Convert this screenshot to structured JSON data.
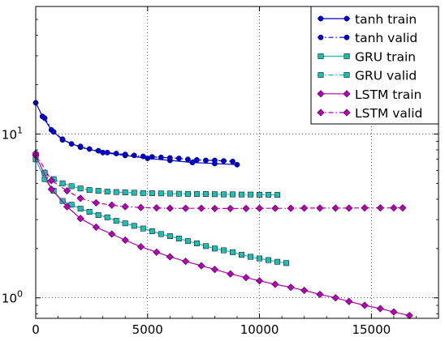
{
  "chart_data": {
    "type": "line",
    "title": "",
    "xlabel": "",
    "ylabel": "",
    "xlim": [
      0,
      18000
    ],
    "ylim": [
      0.75,
      60
    ],
    "yscale": "log",
    "grid": true,
    "legend_position": "top-right",
    "x_ticks": [
      {
        "value": 0,
        "label": "0"
      },
      {
        "value": 5000,
        "label": "5000"
      },
      {
        "value": 10000,
        "label": "10000"
      },
      {
        "value": 15000,
        "label": "15000"
      }
    ],
    "y_ticks": [
      {
        "value": 1,
        "base": "10",
        "exp": "0"
      },
      {
        "value": 10,
        "base": "10",
        "exp": "1"
      }
    ],
    "series": [
      {
        "name": "tanh train",
        "color": "#0000cc",
        "marker": "circle",
        "line": "solid",
        "marker_every": 0,
        "points": [
          [
            0,
            15.5
          ],
          [
            300,
            12.8
          ],
          [
            700,
            10.6
          ],
          [
            1200,
            9.2
          ],
          [
            2000,
            8.3
          ],
          [
            3000,
            7.7
          ],
          [
            4000,
            7.4
          ],
          [
            5000,
            7.1
          ],
          [
            6000,
            6.9
          ],
          [
            7000,
            6.7
          ],
          [
            8000,
            6.6
          ],
          [
            9000,
            6.5
          ]
        ]
      },
      {
        "name": "tanh valid",
        "color": "#0000cc",
        "marker": "circle",
        "line": "dashdot",
        "marker_every": 1,
        "points": [
          [
            400,
            12.5
          ],
          [
            800,
            10.3
          ],
          [
            1200,
            9.3
          ],
          [
            1600,
            8.7
          ],
          [
            2000,
            8.4
          ],
          [
            2400,
            8.1
          ],
          [
            2800,
            7.9
          ],
          [
            3200,
            7.7
          ],
          [
            3600,
            7.6
          ],
          [
            4000,
            7.5
          ],
          [
            4400,
            7.4
          ],
          [
            4800,
            7.3
          ],
          [
            5200,
            7.25
          ],
          [
            5600,
            7.2
          ],
          [
            6000,
            7.15
          ],
          [
            6400,
            7.1
          ],
          [
            6800,
            7.0
          ],
          [
            7200,
            6.95
          ],
          [
            7600,
            6.9
          ],
          [
            8000,
            6.9
          ],
          [
            8400,
            6.85
          ],
          [
            8800,
            6.8
          ]
        ]
      },
      {
        "name": "GRU train",
        "color": "#23bbb3",
        "marker": "square",
        "line": "solid",
        "marker_every": 1,
        "points": [
          [
            0,
            7.0
          ],
          [
            400,
            5.3
          ],
          [
            800,
            4.5
          ],
          [
            1200,
            3.9
          ],
          [
            1600,
            3.7
          ],
          [
            2000,
            3.5
          ],
          [
            2400,
            3.35
          ],
          [
            2800,
            3.2
          ],
          [
            3200,
            3.1
          ],
          [
            3600,
            2.95
          ],
          [
            4000,
            2.85
          ],
          [
            4400,
            2.75
          ],
          [
            4800,
            2.65
          ],
          [
            5200,
            2.55
          ],
          [
            5600,
            2.45
          ],
          [
            6000,
            2.38
          ],
          [
            6400,
            2.3
          ],
          [
            6800,
            2.22
          ],
          [
            7200,
            2.15
          ],
          [
            7600,
            2.07
          ],
          [
            8000,
            2.0
          ],
          [
            8400,
            1.95
          ],
          [
            8800,
            1.9
          ],
          [
            9200,
            1.83
          ],
          [
            9600,
            1.78
          ],
          [
            10000,
            1.74
          ],
          [
            10400,
            1.7
          ],
          [
            10800,
            1.66
          ],
          [
            11200,
            1.63
          ]
        ]
      },
      {
        "name": "GRU valid",
        "color": "#23bbb3",
        "marker": "square",
        "line": "dashdot",
        "marker_every": 1,
        "points": [
          [
            400,
            5.8
          ],
          [
            800,
            5.3
          ],
          [
            1200,
            5.0
          ],
          [
            1600,
            4.8
          ],
          [
            2000,
            4.65
          ],
          [
            2400,
            4.55
          ],
          [
            2800,
            4.5
          ],
          [
            3200,
            4.45
          ],
          [
            3600,
            4.42
          ],
          [
            4000,
            4.4
          ],
          [
            4400,
            4.38
          ],
          [
            4800,
            4.36
          ],
          [
            5200,
            4.35
          ],
          [
            5600,
            4.34
          ],
          [
            6000,
            4.33
          ],
          [
            6400,
            4.32
          ],
          [
            6800,
            4.31
          ],
          [
            7200,
            4.3
          ],
          [
            7600,
            4.3
          ],
          [
            8000,
            4.29
          ],
          [
            8400,
            4.28
          ],
          [
            8800,
            4.28
          ],
          [
            9200,
            4.27
          ],
          [
            9600,
            4.27
          ],
          [
            10000,
            4.26
          ],
          [
            10400,
            4.26
          ],
          [
            10800,
            4.25
          ]
        ]
      },
      {
        "name": "LSTM train",
        "color": "#b000b0",
        "marker": "diamond",
        "line": "solid",
        "marker_every": 1,
        "points": [
          [
            0,
            7.4
          ],
          [
            700,
            4.6
          ],
          [
            1400,
            3.6
          ],
          [
            2000,
            3.05
          ],
          [
            2700,
            2.7
          ],
          [
            3400,
            2.45
          ],
          [
            4000,
            2.25
          ],
          [
            4700,
            2.05
          ],
          [
            5400,
            1.9
          ],
          [
            6000,
            1.78
          ],
          [
            6700,
            1.67
          ],
          [
            7400,
            1.57
          ],
          [
            8000,
            1.49
          ],
          [
            8700,
            1.4
          ],
          [
            9400,
            1.33
          ],
          [
            10000,
            1.27
          ],
          [
            10700,
            1.21
          ],
          [
            11400,
            1.16
          ],
          [
            12000,
            1.11
          ],
          [
            12700,
            1.05
          ],
          [
            13400,
            1.0
          ],
          [
            14000,
            0.95
          ],
          [
            14700,
            0.9
          ],
          [
            15400,
            0.86
          ],
          [
            16000,
            0.82
          ],
          [
            16700,
            0.78
          ]
        ]
      },
      {
        "name": "LSTM valid",
        "color": "#b000b0",
        "marker": "diamond",
        "line": "dashdot",
        "marker_every": 1,
        "points": [
          [
            0,
            7.6
          ],
          [
            700,
            5.2
          ],
          [
            1400,
            4.5
          ],
          [
            2000,
            4.05
          ],
          [
            2700,
            3.8
          ],
          [
            3400,
            3.68
          ],
          [
            4000,
            3.6
          ],
          [
            4700,
            3.56
          ],
          [
            5400,
            3.54
          ],
          [
            6000,
            3.52
          ],
          [
            6700,
            3.52
          ],
          [
            7400,
            3.52
          ],
          [
            8000,
            3.51
          ],
          [
            8700,
            3.51
          ],
          [
            9400,
            3.51
          ],
          [
            10000,
            3.52
          ],
          [
            10700,
            3.52
          ],
          [
            11400,
            3.52
          ],
          [
            12000,
            3.53
          ],
          [
            12700,
            3.53
          ],
          [
            13400,
            3.53
          ],
          [
            14000,
            3.53
          ],
          [
            14700,
            3.54
          ],
          [
            15400,
            3.54
          ],
          [
            16000,
            3.54
          ],
          [
            16400,
            3.54
          ]
        ]
      }
    ]
  }
}
